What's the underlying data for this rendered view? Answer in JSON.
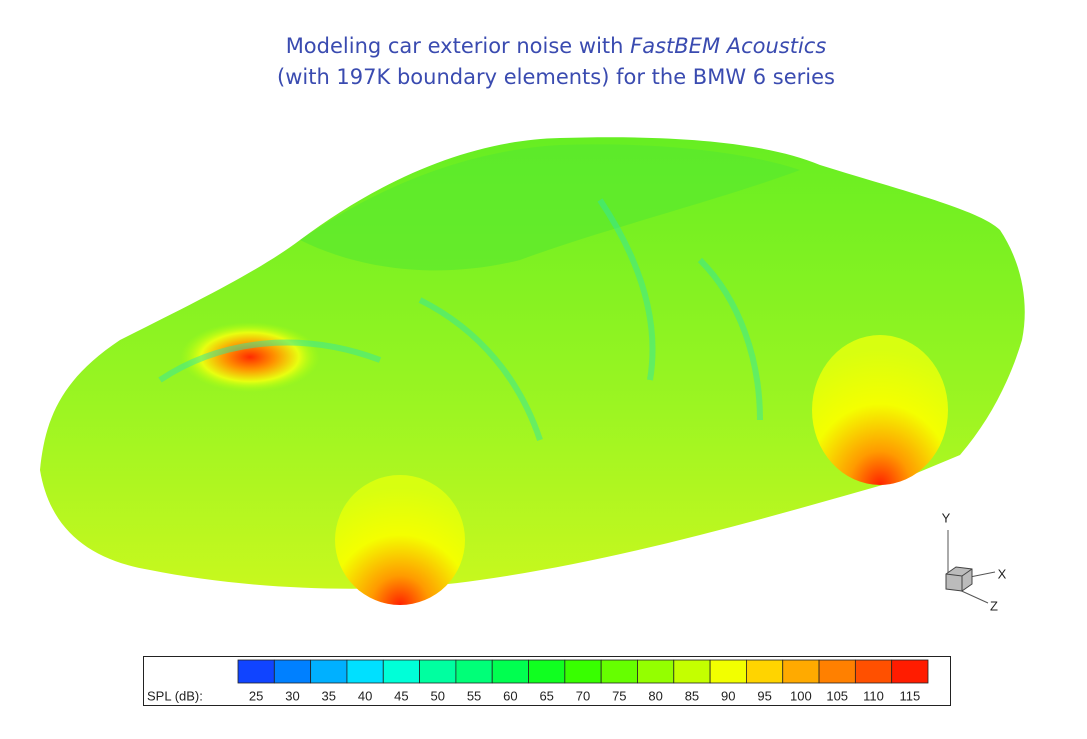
{
  "title": {
    "line1": [
      "Modeling car exterior noise with ",
      "FastBEM Acoustics"
    ],
    "line2": "(with 197K boundary elements) for the BMW 6 series"
  },
  "colorbar": {
    "label": "SPL (dB):",
    "ticks": [
      25,
      30,
      35,
      40,
      45,
      50,
      55,
      60,
      65,
      70,
      75,
      80,
      85,
      90,
      95,
      100,
      105,
      110,
      115
    ],
    "colors": [
      "#1044ff",
      "#0080ff",
      "#00b0ff",
      "#00e0ff",
      "#00ffd8",
      "#00ffa0",
      "#00ff78",
      "#00ff50",
      "#10ff20",
      "#38ff00",
      "#66ff00",
      "#94ff00",
      "#c4ff00",
      "#f2ff00",
      "#ffd400",
      "#ffaa00",
      "#ff8000",
      "#ff5000",
      "#ff1c00"
    ]
  },
  "axes": {
    "y": "Y",
    "x": "X",
    "z": "Z"
  }
}
